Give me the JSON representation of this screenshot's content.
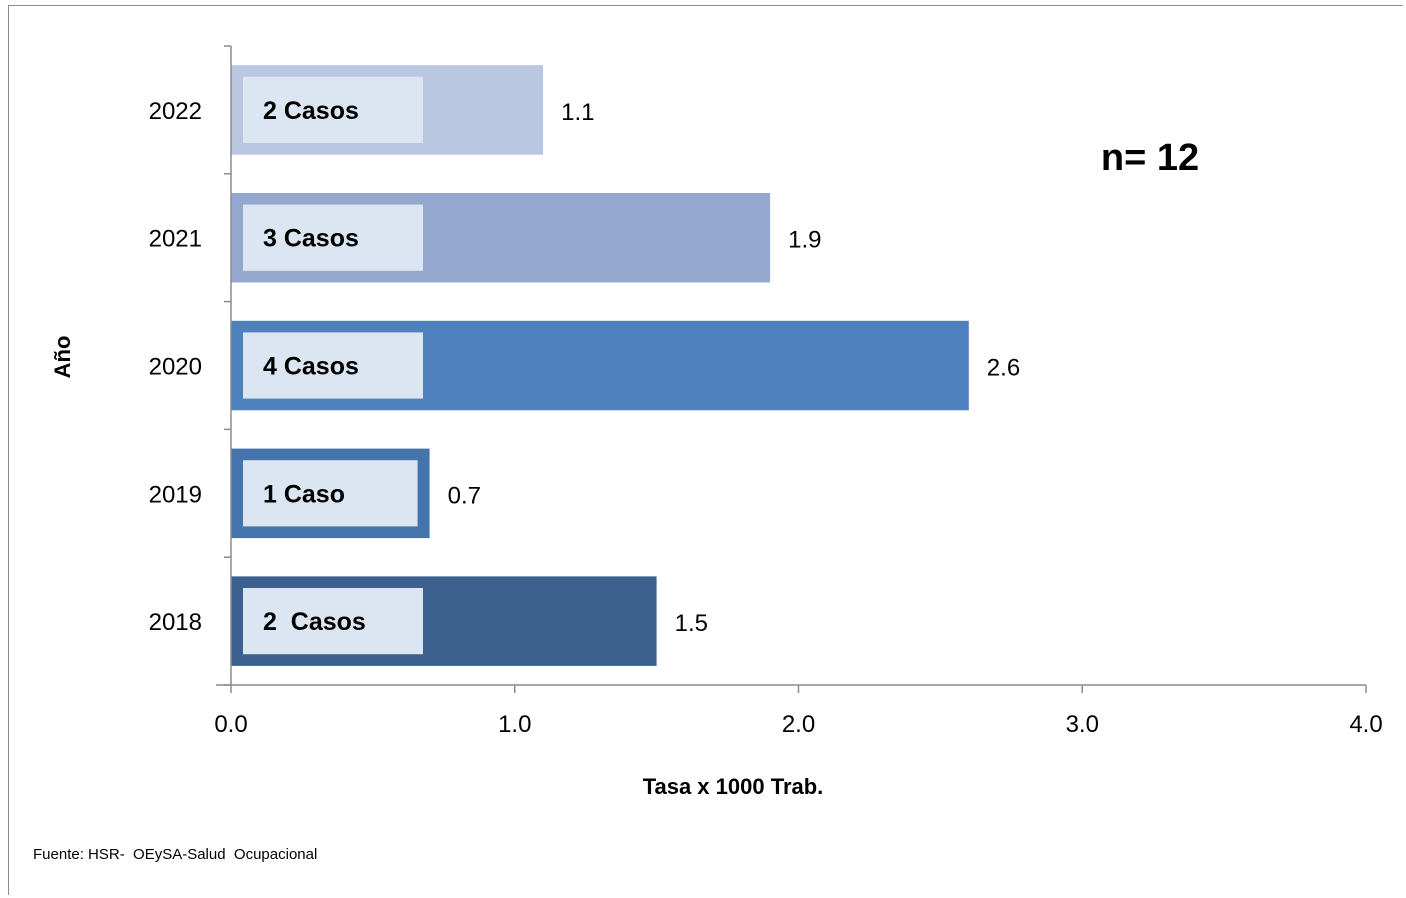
{
  "chart_data": {
    "type": "bar",
    "orientation": "horizontal",
    "categories": [
      "2018",
      "2019",
      "2020",
      "2021",
      "2022"
    ],
    "values": [
      1.5,
      0.7,
      2.6,
      1.9,
      1.1
    ],
    "data_labels": [
      "1.5",
      "0.7",
      "2.6",
      "1.9",
      "1.1"
    ],
    "inner_labels": [
      "2  Casos",
      "1 Caso",
      "4 Casos",
      "3 Casos",
      "2 Casos"
    ],
    "bar_colors": [
      "#3c618f",
      "#4573ab",
      "#4e81bd",
      "#95a9d0",
      "#bac7e1"
    ],
    "inner_box_color": "#dce5f2",
    "xlim": [
      0,
      4
    ],
    "x_ticks": [
      "0.0",
      "1.0",
      "2.0",
      "3.0",
      "4.0"
    ],
    "xlabel": "Tasa x 1000 Trab.",
    "ylabel": "Año",
    "annotation": "n= 12",
    "grid": false,
    "legend": "none"
  },
  "source_note": "Fuente: HSR-  OEySA-Salud  Ocupacional"
}
